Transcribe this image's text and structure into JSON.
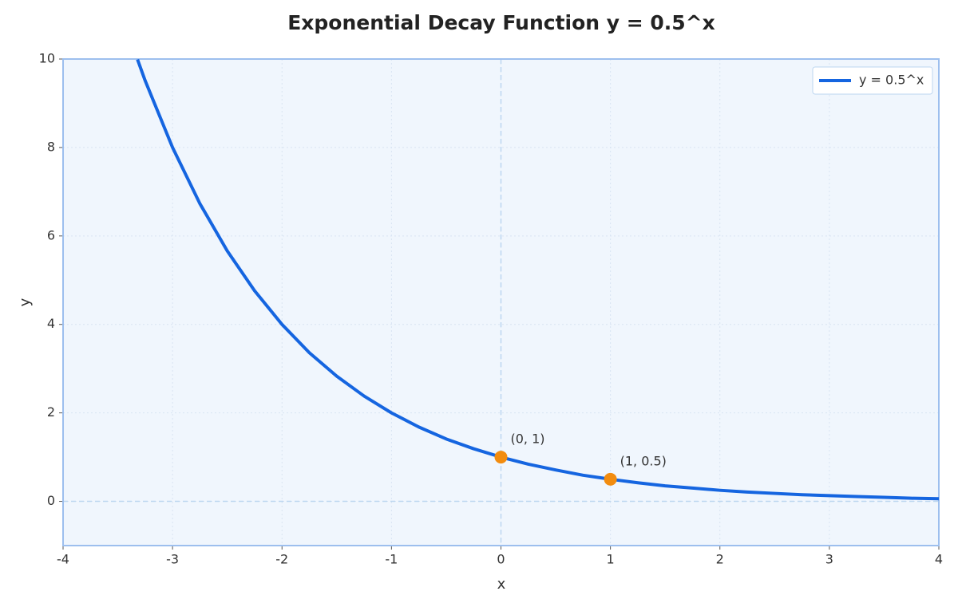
{
  "chart_data": {
    "type": "line",
    "title": "Exponential Decay Function y = 0.5^x",
    "xlabel": "x",
    "ylabel": "y",
    "xlim": [
      -4,
      4
    ],
    "xticks": [
      -4,
      -3,
      -2,
      -1,
      0,
      1,
      2,
      3,
      4
    ],
    "ylim": [
      -1,
      10
    ],
    "yticks": [
      0,
      2,
      4,
      6,
      8,
      10
    ],
    "grid": true,
    "legend": "upper right",
    "hlines": [
      0
    ],
    "vlines": [
      0
    ],
    "series": [
      {
        "name": "y = 0.5^x",
        "color": "#1565e0",
        "x": [
          -3.32,
          -3.25,
          -3,
          -2.75,
          -2.5,
          -2.25,
          -2,
          -1.75,
          -1.5,
          -1.25,
          -1,
          -0.75,
          -0.5,
          -0.25,
          0,
          0.25,
          0.5,
          0.75,
          1,
          1.25,
          1.5,
          1.75,
          2,
          2.25,
          2.5,
          2.75,
          3,
          3.25,
          3.5,
          3.75,
          4
        ],
        "values": [
          9.99,
          9.51,
          8,
          6.73,
          5.66,
          4.76,
          4,
          3.36,
          2.83,
          2.38,
          2,
          1.68,
          1.41,
          1.19,
          1,
          0.84,
          0.71,
          0.59,
          0.5,
          0.42,
          0.35,
          0.3,
          0.25,
          0.21,
          0.18,
          0.15,
          0.13,
          0.11,
          0.09,
          0.07,
          0.06
        ]
      }
    ],
    "points": {
      "color": "#f28c0f",
      "x": [
        0,
        1
      ],
      "values": [
        1,
        0.5
      ],
      "labels": [
        "(0, 1)",
        "(1, 0.5)"
      ]
    }
  }
}
